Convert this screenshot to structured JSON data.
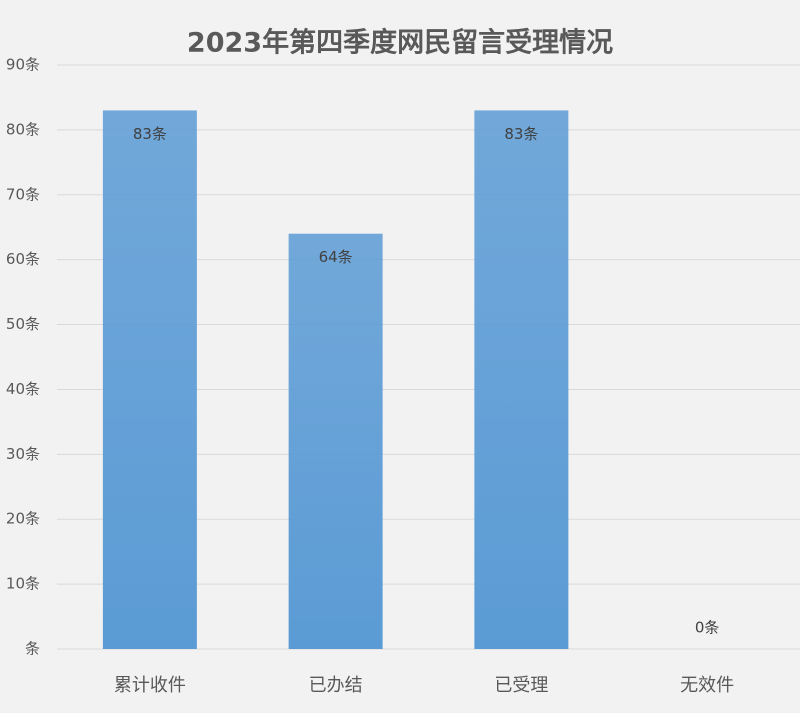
{
  "chart_data": {
    "type": "bar",
    "title": "2023年第四季度网民留言受理情况",
    "categories": [
      "累计收件",
      "已办结",
      "已受理",
      "无效件"
    ],
    "values": [
      83,
      64,
      83,
      0
    ],
    "value_labels": [
      "83条",
      "64条",
      "83条",
      "0条"
    ],
    "color": "#5b9bd5",
    "ylim": [
      0,
      90
    ],
    "yticks": [
      {
        "value": 0,
        "label": "条"
      },
      {
        "value": 10,
        "label": "10条"
      },
      {
        "value": 20,
        "label": "20条"
      },
      {
        "value": 30,
        "label": "30条"
      },
      {
        "value": 40,
        "label": "40条"
      },
      {
        "value": 50,
        "label": "50条"
      },
      {
        "value": 60,
        "label": "60条"
      },
      {
        "value": 70,
        "label": "70条"
      },
      {
        "value": 80,
        "label": "80条"
      },
      {
        "value": 90,
        "label": "90条"
      }
    ],
    "grid": true
  }
}
